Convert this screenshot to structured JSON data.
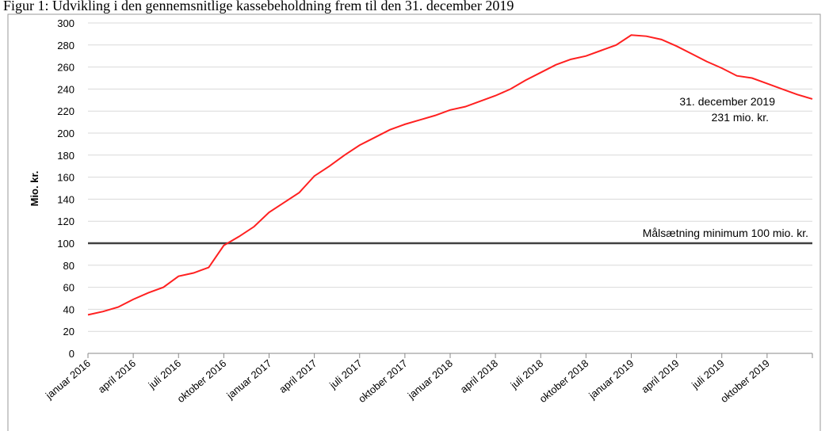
{
  "chart_data": {
    "type": "line",
    "title": "Figur 1: Udvikling i den gennemsnitlige kassebeholdning frem til den 31. december 2019",
    "y_label": "Mio. kr.",
    "categories": [
      "januar 2016",
      null,
      null,
      "april 2016",
      null,
      null,
      "juli 2016",
      null,
      null,
      "oktober 2016",
      null,
      null,
      "januar 2017",
      null,
      null,
      "april 2017",
      null,
      null,
      "juli 2017",
      null,
      null,
      "oktober 2017",
      null,
      null,
      "januar 2018",
      null,
      null,
      "april 2018",
      null,
      null,
      "juli 2018",
      null,
      null,
      "oktober 2018",
      null,
      null,
      "januar 2019",
      null,
      null,
      "april 2019",
      null,
      null,
      "juli 2019",
      null,
      null,
      "oktober 2019",
      null,
      null,
      null
    ],
    "series": [
      {
        "name": "Kassebeholdning",
        "color": "#ff2020",
        "values": [
          35,
          38,
          42,
          49,
          55,
          60,
          70,
          73,
          78,
          98,
          106,
          115,
          128,
          137,
          146,
          161,
          170,
          180,
          189,
          196,
          203,
          208,
          212,
          216,
          221,
          224,
          229,
          234,
          240,
          248,
          255,
          262,
          267,
          270,
          275,
          280,
          289,
          288,
          285,
          279,
          272,
          265,
          259,
          252,
          250,
          245,
          240,
          235,
          231
        ]
      }
    ],
    "ylim": [
      0,
      300
    ],
    "yticks": [
      0,
      20,
      40,
      60,
      80,
      100,
      120,
      140,
      160,
      180,
      200,
      220,
      240,
      260,
      280,
      300
    ],
    "grid": true,
    "reference_line": {
      "value": 100,
      "label": "Målsætning minimum 100 mio. kr.",
      "color": "#404040"
    },
    "annotations": [
      "31. december 2019",
      "231 mio. kr."
    ]
  }
}
